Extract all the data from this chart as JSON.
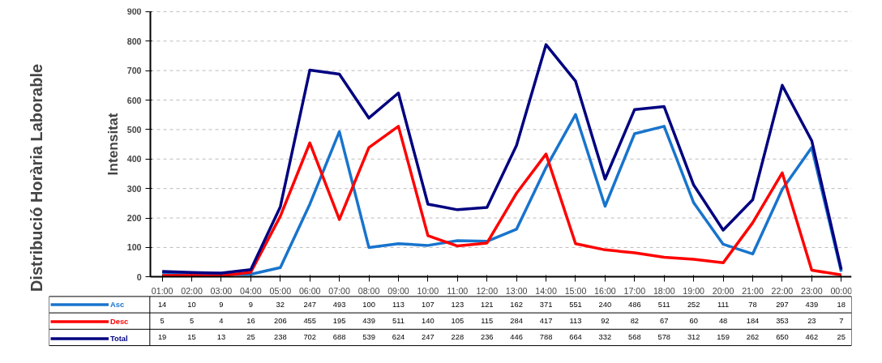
{
  "chart_data": {
    "type": "line",
    "title": "Distribució Horària Laborable",
    "ylabel": "Intensitat",
    "categories": [
      "01:00",
      "02:00",
      "03:00",
      "04:00",
      "05:00",
      "06:00",
      "07:00",
      "08:00",
      "09:00",
      "10:00",
      "11:00",
      "12:00",
      "13:00",
      "14:00",
      "15:00",
      "16:00",
      "17:00",
      "18:00",
      "19:00",
      "20:00",
      "21:00",
      "22:00",
      "23:00",
      "00:00"
    ],
    "series": [
      {
        "name": "Asc",
        "color": "#1874cd",
        "values": [
          14,
          10,
          9,
          9,
          32,
          247,
          493,
          100,
          113,
          107,
          123,
          121,
          162,
          371,
          551,
          240,
          486,
          511,
          252,
          111,
          78,
          297,
          439,
          18
        ]
      },
      {
        "name": "Desc",
        "color": "#ff0000",
        "values": [
          5,
          5,
          4,
          16,
          206,
          455,
          195,
          439,
          511,
          140,
          105,
          115,
          284,
          417,
          113,
          92,
          82,
          67,
          60,
          48,
          184,
          353,
          23,
          7
        ]
      },
      {
        "name": "Total",
        "color": "#000080",
        "values": [
          19,
          15,
          13,
          25,
          238,
          702,
          688,
          539,
          624,
          247,
          228,
          236,
          446,
          788,
          664,
          332,
          568,
          578,
          312,
          159,
          262,
          650,
          462,
          25
        ]
      }
    ],
    "ylim": [
      0,
      900
    ],
    "yticks": [
      0,
      100,
      200,
      300,
      400,
      500,
      600,
      700,
      800,
      900
    ],
    "grid": "y",
    "data_labels": true,
    "legend": "bottom left",
    "marker": "none",
    "line_style": "solid"
  }
}
